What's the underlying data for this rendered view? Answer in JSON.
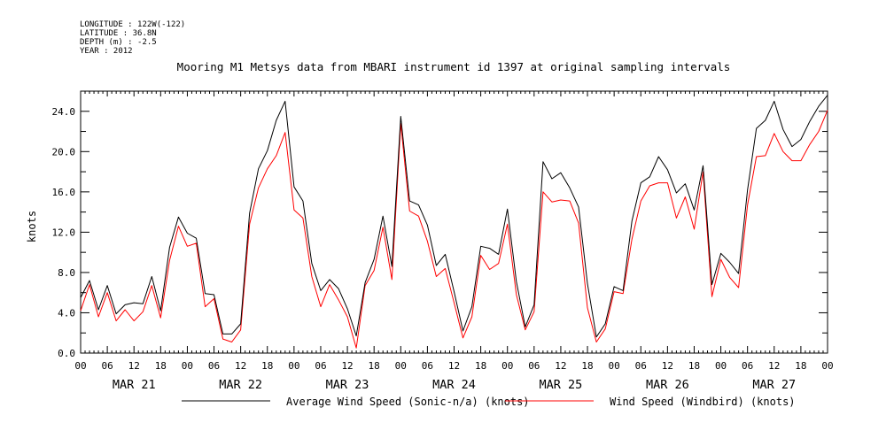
{
  "metadata": {
    "longitude": "LONGITUDE : 122W(-122)",
    "latitude": "LATITUDE : 36.8N",
    "depth": "DEPTH (m) : -2.5",
    "year": "YEAR : 2012"
  },
  "chart_data": {
    "type": "line",
    "title": "Mooring M1 Metsys data from MBARI instrument id 1397 at original sampling intervals",
    "xlabel": "",
    "ylabel": "knots",
    "ylim": [
      0,
      26
    ],
    "y_ticks": [
      "0.0",
      "4.0",
      "8.0",
      "12.0",
      "16.0",
      "20.0",
      "24.0"
    ],
    "x_range_hours": [
      0,
      168
    ],
    "x_tick_labels": [
      "00",
      "06",
      "12",
      "18",
      "00",
      "06",
      "12",
      "18",
      "00",
      "06",
      "12",
      "18",
      "00",
      "06",
      "12",
      "18",
      "00",
      "06",
      "12",
      "18",
      "00",
      "06",
      "12",
      "18",
      "00",
      "06",
      "12",
      "18",
      "00"
    ],
    "day_labels": [
      "MAR 21",
      "MAR 22",
      "MAR 23",
      "MAR 24",
      "MAR 25",
      "MAR 26",
      "MAR 27"
    ],
    "grid": false,
    "legend_position": "bottom",
    "series": [
      {
        "name": "Average Wind Speed (Sonic-n/a) (knots)",
        "color": "#000000",
        "x": [
          0,
          2,
          4,
          6,
          8,
          10,
          12,
          14,
          16,
          18,
          20,
          22,
          24,
          26,
          28,
          30,
          32,
          34,
          36,
          38,
          40,
          42,
          44,
          46,
          48,
          50,
          52,
          54,
          56,
          58,
          60,
          62,
          64,
          66,
          68,
          70,
          72,
          74,
          76,
          78,
          80,
          82,
          84,
          86,
          88,
          90,
          92,
          94,
          96,
          98,
          100,
          102,
          104,
          106,
          108,
          110,
          112,
          114,
          116,
          118,
          120,
          122,
          124,
          126,
          128,
          130,
          132,
          134,
          136,
          138,
          140,
          142,
          144,
          146,
          148,
          150,
          152,
          154,
          156,
          158,
          160,
          162,
          164,
          166,
          168
        ],
        "values": [
          5.5,
          7.2,
          4.3,
          6.7,
          3.9,
          4.8,
          5.0,
          4.9,
          7.6,
          4.2,
          10.5,
          13.5,
          11.9,
          11.4,
          5.9,
          5.8,
          1.9,
          1.9,
          2.9,
          13.9,
          18.3,
          20.1,
          23.1,
          25.0,
          16.5,
          15.1,
          8.9,
          6.2,
          7.3,
          6.4,
          4.4,
          1.7,
          7.0,
          9.3,
          13.6,
          8.6,
          23.5,
          15.1,
          14.7,
          12.7,
          8.7,
          9.8,
          6.1,
          2.2,
          4.6,
          10.6,
          10.4,
          9.8,
          14.3,
          7.1,
          2.6,
          4.8,
          19.0,
          17.3,
          17.9,
          16.4,
          14.5,
          6.9,
          1.6,
          2.9,
          6.6,
          6.2,
          13.1,
          16.9,
          17.5,
          19.5,
          18.2,
          15.9,
          16.8,
          14.2,
          18.6,
          6.8,
          9.9,
          9.0,
          7.9,
          16.2,
          22.3,
          23.1,
          25.0,
          22.2,
          20.5,
          21.2,
          23.0,
          24.5,
          25.6
        ],
        "values_bounded": true
      },
      {
        "name": "Wind Speed (Windbird) (knots)",
        "color": "#ff0000",
        "x": [
          0,
          2,
          4,
          6,
          8,
          10,
          12,
          14,
          16,
          18,
          20,
          22,
          24,
          26,
          28,
          30,
          32,
          34,
          36,
          38,
          40,
          42,
          44,
          46,
          48,
          50,
          52,
          54,
          56,
          58,
          60,
          62,
          64,
          66,
          68,
          70,
          72,
          74,
          76,
          78,
          80,
          82,
          84,
          86,
          88,
          90,
          92,
          94,
          96,
          98,
          100,
          102,
          104,
          106,
          108,
          110,
          112,
          114,
          116,
          118,
          120,
          122,
          124,
          126,
          128,
          130,
          132,
          134,
          136,
          138,
          140,
          142,
          144,
          146,
          148,
          150,
          152,
          154,
          156,
          158,
          160,
          162,
          164,
          166,
          168
        ],
        "values": [
          4.2,
          6.8,
          3.6,
          6.0,
          3.2,
          4.3,
          3.2,
          4.1,
          6.7,
          3.5,
          9.2,
          12.6,
          10.6,
          10.9,
          4.6,
          5.4,
          1.4,
          1.1,
          2.3,
          12.8,
          16.4,
          18.3,
          19.6,
          21.9,
          14.2,
          13.4,
          7.6,
          4.6,
          6.8,
          5.3,
          3.6,
          0.5,
          6.7,
          8.2,
          12.5,
          7.3,
          22.8,
          14.1,
          13.6,
          11.1,
          7.6,
          8.4,
          5.0,
          1.5,
          3.6,
          9.7,
          8.3,
          8.9,
          12.8,
          5.8,
          2.3,
          4.1,
          16.0,
          15.0,
          15.2,
          15.1,
          12.9,
          4.5,
          1.1,
          2.4,
          6.1,
          5.9,
          11.3,
          15.1,
          16.6,
          16.9,
          16.9,
          13.4,
          15.5,
          12.3,
          18.0,
          5.6,
          9.3,
          7.5,
          6.5,
          14.7,
          19.5,
          19.6,
          21.8,
          20.0,
          19.1,
          19.1,
          20.7,
          22.0,
          24.1
        ]
      }
    ]
  }
}
